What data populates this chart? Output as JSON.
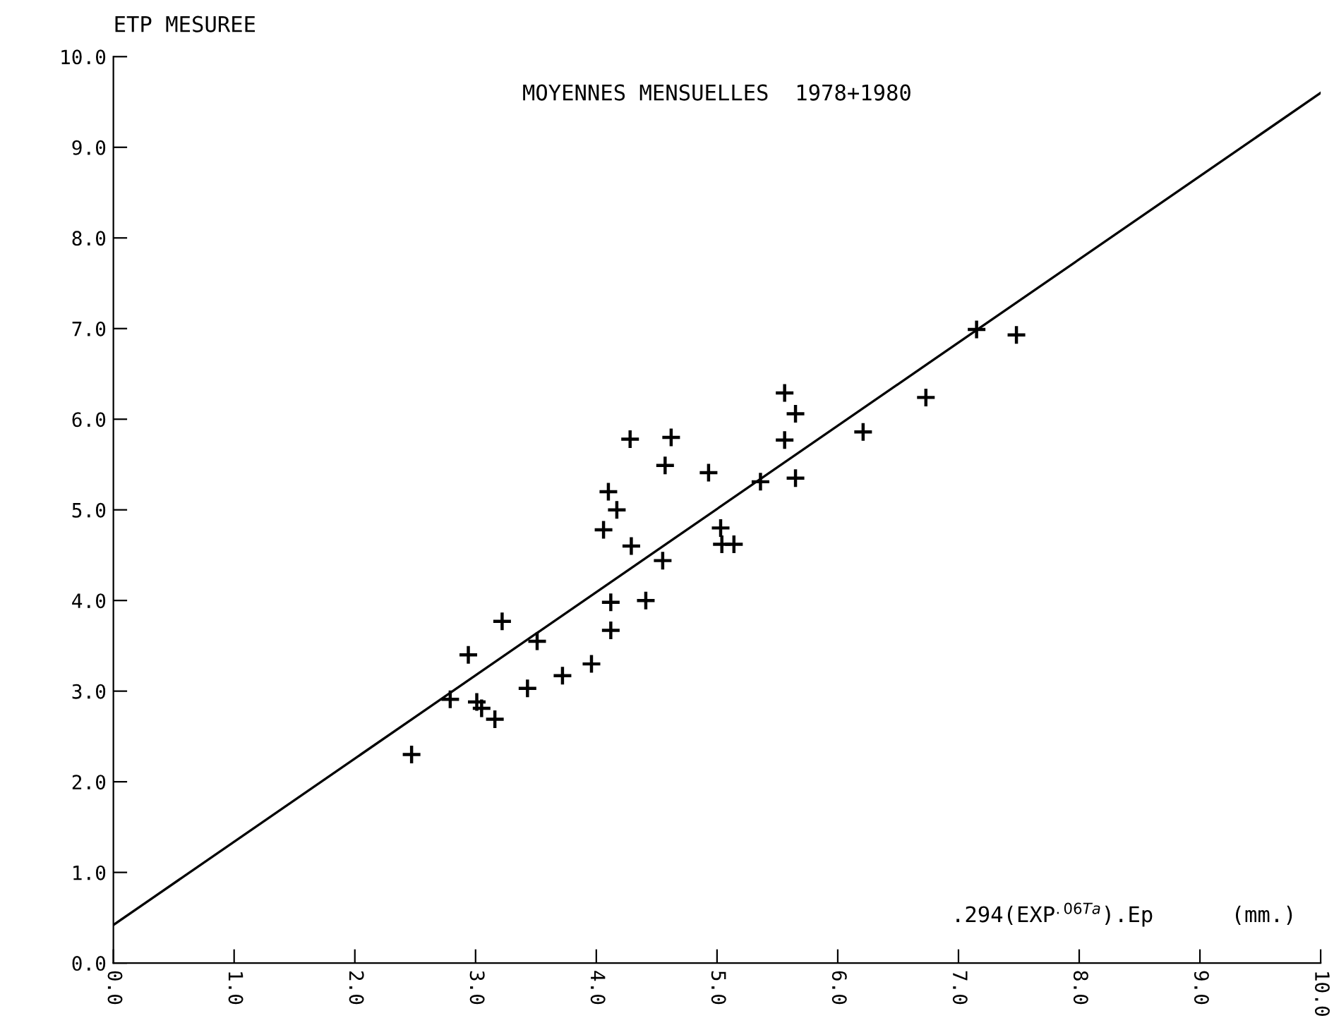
{
  "chart_data": {
    "type": "scatter",
    "title": "MOYENNES MENSUELLES  1978+1980",
    "ylabel": "ETP MESUREE",
    "xlabel": ".294(EXP$^{.06Ta}$).Ep      (mm.)",
    "xlim": [
      0,
      10
    ],
    "ylim": [
      0,
      10
    ],
    "xticks": [
      {
        "value": 0,
        "label": "0.0"
      },
      {
        "value": 1,
        "label": "1.0"
      },
      {
        "value": 2,
        "label": "2.0"
      },
      {
        "value": 3,
        "label": "3.0"
      },
      {
        "value": 4,
        "label": "4.0"
      },
      {
        "value": 5,
        "label": "5.0"
      },
      {
        "value": 6,
        "label": "6.0"
      },
      {
        "value": 7,
        "label": "7.0"
      },
      {
        "value": 8,
        "label": "8.0"
      },
      {
        "value": 9,
        "label": "9.0"
      },
      {
        "value": 10,
        "label": "10.0"
      }
    ],
    "yticks": [
      {
        "value": 0,
        "label": "0.0"
      },
      {
        "value": 1,
        "label": "1.0"
      },
      {
        "value": 2,
        "label": "2.0"
      },
      {
        "value": 3,
        "label": "3.0"
      },
      {
        "value": 4,
        "label": "4.0"
      },
      {
        "value": 5,
        "label": "5.0"
      },
      {
        "value": 6,
        "label": "6.0"
      },
      {
        "value": 7,
        "label": "7.0"
      },
      {
        "value": 8,
        "label": "8.0"
      },
      {
        "value": 9,
        "label": "9.0"
      },
      {
        "value": 10,
        "label": "10.0"
      }
    ],
    "marker": "cross",
    "grid": false,
    "legend": false,
    "series": [
      {
        "color": "#000000",
        "x": [
          2.47,
          2.79,
          2.94,
          3.01,
          3.05,
          3.16,
          3.22,
          3.43,
          3.51,
          3.72,
          3.96,
          4.12,
          4.12,
          4.41,
          4.1,
          4.17,
          4.06,
          4.28,
          4.29,
          4.55,
          4.57,
          4.62,
          4.93,
          5.03,
          5.04,
          5.14,
          5.36,
          5.56,
          5.65,
          5.56,
          5.65,
          6.21,
          6.73,
          7.15,
          7.48
        ],
        "values": [
          2.3,
          2.91,
          3.4,
          2.88,
          2.81,
          2.69,
          3.77,
          3.03,
          3.55,
          3.17,
          3.3,
          3.67,
          3.98,
          4.0,
          5.2,
          5.0,
          4.78,
          5.78,
          4.6,
          4.44,
          5.49,
          5.8,
          5.41,
          4.8,
          4.62,
          4.62,
          5.31,
          6.29,
          6.06,
          5.77,
          5.35,
          5.86,
          6.24,
          6.99,
          6.93
        ]
      },
      {
        "type": "line",
        "color": "#000000",
        "marker": "none",
        "x": [
          0,
          10
        ],
        "values": [
          0.42,
          9.6
        ]
      }
    ]
  }
}
